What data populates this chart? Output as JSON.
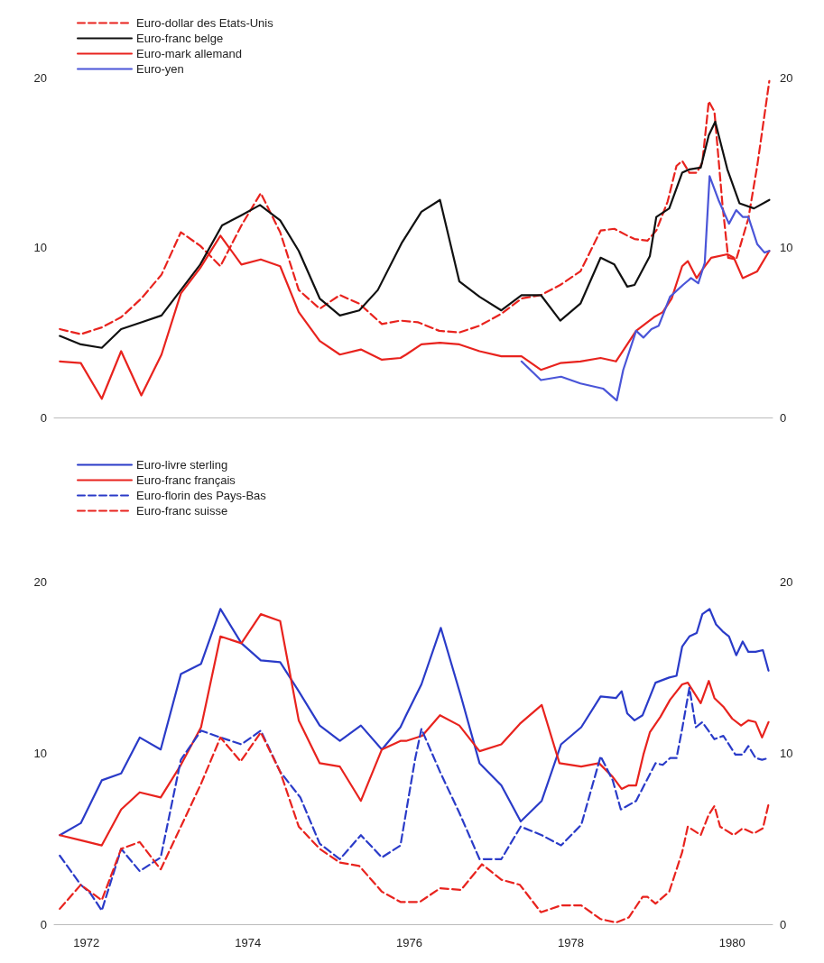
{
  "chart_data": [
    {
      "type": "line",
      "xlim": [
        1971.6,
        1980.5
      ],
      "xticks": [
        1972,
        1974,
        1976,
        1978,
        1980
      ],
      "ylim": [
        0,
        20
      ],
      "yticks": [
        0,
        10,
        20
      ],
      "y2lim": [
        0,
        20
      ],
      "y2ticks": [
        0,
        10,
        20
      ],
      "tick_labels": "y",
      "grid": false,
      "legend": "top left",
      "marker": "none",
      "series": [
        {
          "name": "Euro-dollar des Etats-Unis",
          "color": "#e8231e",
          "line_style": "dashed",
          "x": [
            1971.67,
            1971.93,
            1972.19,
            1972.43,
            1972.68,
            1972.93,
            1973.17,
            1973.41,
            1973.66,
            1973.92,
            1974.16,
            1974.4,
            1974.63,
            1974.89,
            1975.14,
            1975.38,
            1975.66,
            1975.89,
            1976.11,
            1976.37,
            1976.62,
            1976.87,
            1977.14,
            1977.39,
            1977.63,
            1977.87,
            1978.12,
            1978.37,
            1978.54,
            1978.7,
            1978.79,
            1978.95,
            1979.06,
            1979.2,
            1979.31,
            1979.38,
            1979.47,
            1979.56,
            1979.63,
            1979.71,
            1979.78,
            1979.88,
            1979.95,
            1980.05,
            1980.2,
            1980.31,
            1980.46
          ],
          "values": [
            5.2,
            4.9,
            5.3,
            5.9,
            7.0,
            8.4,
            10.9,
            10.1,
            8.9,
            11.3,
            13.2,
            10.9,
            7.5,
            6.4,
            7.2,
            6.7,
            5.5,
            5.7,
            5.6,
            5.1,
            5.0,
            5.4,
            6.1,
            7.0,
            7.2,
            7.8,
            8.6,
            11.0,
            11.1,
            10.7,
            10.5,
            10.4,
            11.0,
            12.7,
            14.8,
            15.1,
            14.4,
            14.4,
            15.0,
            18.6,
            18.0,
            12.5,
            9.4,
            9.3,
            11.7,
            14.8,
            19.8
          ]
        },
        {
          "name": "Euro-franc belge",
          "color": "#111111",
          "line_style": "solid",
          "x": [
            1971.67,
            1971.93,
            1972.19,
            1972.43,
            1972.68,
            1972.93,
            1973.17,
            1973.41,
            1973.68,
            1973.92,
            1974.15,
            1974.4,
            1974.63,
            1974.89,
            1975.14,
            1975.38,
            1975.61,
            1975.91,
            1976.15,
            1976.38,
            1976.62,
            1976.87,
            1977.14,
            1977.39,
            1977.63,
            1977.87,
            1978.12,
            1978.37,
            1978.54,
            1978.7,
            1978.79,
            1978.98,
            1979.06,
            1979.22,
            1979.38,
            1979.47,
            1979.61,
            1979.71,
            1979.79,
            1979.94,
            1980.09,
            1980.27,
            1980.46
          ],
          "values": [
            4.8,
            4.3,
            4.1,
            5.2,
            5.6,
            6.0,
            7.5,
            9.0,
            11.3,
            11.9,
            12.5,
            11.6,
            9.8,
            7.0,
            6.0,
            6.3,
            7.5,
            10.3,
            12.1,
            12.8,
            8.0,
            7.1,
            6.3,
            7.2,
            7.2,
            5.7,
            6.7,
            9.4,
            9.0,
            7.7,
            7.8,
            9.5,
            11.8,
            12.3,
            14.4,
            14.6,
            14.7,
            16.6,
            17.4,
            14.6,
            12.6,
            12.3,
            12.8
          ]
        },
        {
          "name": "Euro-mark allemand",
          "color": "#e8231e",
          "line_style": "solid",
          "x": [
            1971.67,
            1971.93,
            1972.19,
            1972.43,
            1972.68,
            1972.93,
            1973.17,
            1973.41,
            1973.66,
            1973.92,
            1974.16,
            1974.4,
            1974.63,
            1974.89,
            1975.14,
            1975.4,
            1975.66,
            1975.89,
            1975.96,
            1976.15,
            1976.38,
            1976.62,
            1976.87,
            1977.14,
            1977.39,
            1977.63,
            1977.87,
            1978.12,
            1978.37,
            1978.56,
            1978.7,
            1978.81,
            1979.03,
            1979.14,
            1979.25,
            1979.38,
            1979.45,
            1979.56,
            1979.63,
            1979.74,
            1979.94,
            1980.02,
            1980.13,
            1980.31,
            1980.46
          ],
          "values": [
            3.3,
            3.2,
            1.1,
            3.9,
            1.3,
            3.7,
            7.3,
            8.8,
            10.7,
            9.0,
            9.3,
            8.9,
            6.2,
            4.5,
            3.7,
            4.0,
            3.4,
            3.5,
            3.7,
            4.3,
            4.4,
            4.3,
            3.9,
            3.6,
            3.6,
            2.8,
            3.2,
            3.3,
            3.5,
            3.3,
            4.3,
            5.1,
            5.9,
            6.2,
            7.0,
            8.9,
            9.2,
            8.2,
            8.7,
            9.4,
            9.6,
            9.4,
            8.2,
            8.6,
            9.8
          ]
        },
        {
          "name": "Euro-yen",
          "color": "#4a55d8",
          "line_style": "solid",
          "x": [
            1977.39,
            1977.63,
            1977.88,
            1978.12,
            1978.4,
            1978.57,
            1978.65,
            1978.81,
            1978.9,
            1979.0,
            1979.09,
            1979.23,
            1979.39,
            1979.49,
            1979.58,
            1979.66,
            1979.72,
            1979.83,
            1979.96,
            1980.05,
            1980.13,
            1980.2,
            1980.31,
            1980.4,
            1980.46
          ],
          "values": [
            3.3,
            2.2,
            2.4,
            2.0,
            1.7,
            1.0,
            2.8,
            5.1,
            4.7,
            5.2,
            5.4,
            7.1,
            7.8,
            8.2,
            7.9,
            9.1,
            14.2,
            12.8,
            11.4,
            12.2,
            11.8,
            11.8,
            10.2,
            9.7,
            9.8
          ]
        }
      ]
    },
    {
      "type": "line",
      "xlim": [
        1971.6,
        1980.5
      ],
      "xticks": [
        1972,
        1974,
        1976,
        1978,
        1980
      ],
      "ylim": [
        0,
        20
      ],
      "yticks": [
        0,
        10,
        20
      ],
      "y2lim": [
        0,
        20
      ],
      "y2ticks": [
        0,
        10,
        20
      ],
      "grid": false,
      "legend": "top left",
      "marker": "none",
      "series": [
        {
          "name": "Euro-livre sterling",
          "color": "#2a3bc8",
          "line_style": "solid",
          "x": [
            1971.67,
            1971.93,
            1972.19,
            1972.43,
            1972.66,
            1972.92,
            1973.17,
            1973.42,
            1973.66,
            1973.92,
            1974.16,
            1974.4,
            1974.63,
            1974.89,
            1975.14,
            1975.4,
            1975.66,
            1975.89,
            1975.96,
            1976.15,
            1976.39,
            1976.64,
            1976.87,
            1977.14,
            1977.38,
            1977.64,
            1977.88,
            1978.13,
            1978.37,
            1978.56,
            1978.63,
            1978.7,
            1978.79,
            1978.89,
            1979.05,
            1979.22,
            1979.31,
            1979.38,
            1979.47,
            1979.56,
            1979.63,
            1979.72,
            1979.8,
            1979.88,
            1979.96,
            1980.05,
            1980.13,
            1980.2,
            1980.29,
            1980.38,
            1980.45
          ],
          "values": [
            5.2,
            5.9,
            8.4,
            8.8,
            10.9,
            10.2,
            14.6,
            15.2,
            18.4,
            16.4,
            15.4,
            15.3,
            13.6,
            11.6,
            10.7,
            11.6,
            10.2,
            11.5,
            12.2,
            14.0,
            17.3,
            13.3,
            9.4,
            8.1,
            6.0,
            7.2,
            10.5,
            11.5,
            13.3,
            13.2,
            13.6,
            12.3,
            11.9,
            12.2,
            14.1,
            14.4,
            14.5,
            16.2,
            16.8,
            17.0,
            18.1,
            18.4,
            17.5,
            17.1,
            16.8,
            15.7,
            16.5,
            15.9,
            15.9,
            16.0,
            14.8
          ]
        },
        {
          "name": "Euro-franc français",
          "color": "#e8231e",
          "line_style": "solid",
          "x": [
            1971.67,
            1971.93,
            1972.19,
            1972.43,
            1972.66,
            1972.92,
            1973.17,
            1973.42,
            1973.66,
            1973.92,
            1974.16,
            1974.4,
            1974.63,
            1974.89,
            1975.14,
            1975.4,
            1975.66,
            1975.89,
            1975.96,
            1976.16,
            1976.38,
            1976.62,
            1976.87,
            1977.14,
            1977.37,
            1977.64,
            1977.86,
            1978.13,
            1978.35,
            1978.52,
            1978.63,
            1978.72,
            1978.81,
            1978.9,
            1978.98,
            1979.11,
            1979.23,
            1979.38,
            1979.45,
            1979.61,
            1979.71,
            1979.78,
            1979.89,
            1980.0,
            1980.11,
            1980.2,
            1980.29,
            1980.37,
            1980.45
          ],
          "values": [
            5.2,
            4.9,
            4.6,
            6.7,
            7.7,
            7.4,
            9.3,
            11.5,
            16.8,
            16.4,
            18.1,
            17.7,
            11.9,
            9.4,
            9.2,
            7.2,
            10.2,
            10.7,
            10.7,
            11.0,
            12.2,
            11.6,
            10.1,
            10.5,
            11.7,
            12.8,
            9.4,
            9.2,
            9.4,
            8.6,
            7.9,
            8.1,
            8.1,
            9.9,
            11.2,
            12.1,
            13.1,
            14.0,
            14.1,
            12.9,
            14.2,
            13.2,
            12.7,
            12.0,
            11.6,
            11.9,
            11.8,
            10.9,
            11.8
          ]
        },
        {
          "name": "Euro-florin des Pays-Bas",
          "color": "#2a3bc8",
          "line_style": "dashed",
          "x": [
            1971.67,
            1971.93,
            1972.05,
            1972.19,
            1972.43,
            1972.66,
            1972.92,
            1973.17,
            1973.42,
            1973.66,
            1973.92,
            1974.16,
            1974.4,
            1974.65,
            1974.89,
            1975.14,
            1975.4,
            1975.66,
            1975.89,
            1976.07,
            1976.15,
            1976.38,
            1976.62,
            1976.87,
            1977.14,
            1977.38,
            1977.64,
            1977.88,
            1978.13,
            1978.37,
            1978.52,
            1978.62,
            1978.81,
            1979.05,
            1979.14,
            1979.23,
            1979.31,
            1979.38,
            1979.47,
            1979.55,
            1979.63,
            1979.78,
            1979.89,
            1980.04,
            1980.13,
            1980.2,
            1980.29,
            1980.37,
            1980.45
          ],
          "values": [
            4.0,
            2.3,
            1.8,
            0.8,
            4.4,
            3.1,
            3.9,
            9.6,
            11.3,
            10.9,
            10.5,
            11.3,
            8.9,
            7.4,
            4.7,
            3.8,
            5.2,
            3.9,
            4.6,
            9.6,
            11.4,
            8.9,
            6.5,
            3.8,
            3.8,
            5.7,
            5.2,
            4.6,
            5.8,
            9.8,
            8.4,
            6.7,
            7.2,
            9.4,
            9.3,
            9.7,
            9.7,
            11.4,
            13.8,
            11.5,
            11.8,
            10.8,
            11.0,
            9.9,
            9.9,
            10.4,
            9.7,
            9.6,
            9.7
          ]
        },
        {
          "name": "Euro-franc suisse",
          "color": "#e8231e",
          "line_style": "dashed",
          "x": [
            1971.67,
            1971.93,
            1972.19,
            1972.43,
            1972.66,
            1972.92,
            1973.17,
            1973.42,
            1973.66,
            1973.91,
            1974.16,
            1974.4,
            1974.63,
            1974.89,
            1975.14,
            1975.38,
            1975.66,
            1975.89,
            1975.96,
            1976.13,
            1976.38,
            1976.64,
            1976.9,
            1977.14,
            1977.37,
            1977.63,
            1977.88,
            1978.13,
            1978.37,
            1978.56,
            1978.72,
            1978.89,
            1978.95,
            1979.05,
            1979.22,
            1979.38,
            1979.45,
            1979.61,
            1979.71,
            1979.78,
            1979.85,
            1980.02,
            1980.13,
            1980.27,
            1980.38,
            1980.45
          ],
          "values": [
            0.9,
            2.3,
            1.4,
            4.4,
            4.8,
            3.2,
            5.7,
            8.2,
            10.9,
            9.5,
            11.2,
            8.9,
            5.7,
            4.4,
            3.6,
            3.4,
            1.9,
            1.3,
            1.3,
            1.3,
            2.1,
            2.0,
            3.5,
            2.6,
            2.3,
            0.7,
            1.1,
            1.1,
            0.3,
            0.1,
            0.4,
            1.6,
            1.6,
            1.2,
            1.9,
            4.2,
            5.7,
            5.2,
            6.4,
            6.9,
            5.7,
            5.2,
            5.6,
            5.3,
            5.6,
            7.0
          ]
        }
      ]
    }
  ]
}
